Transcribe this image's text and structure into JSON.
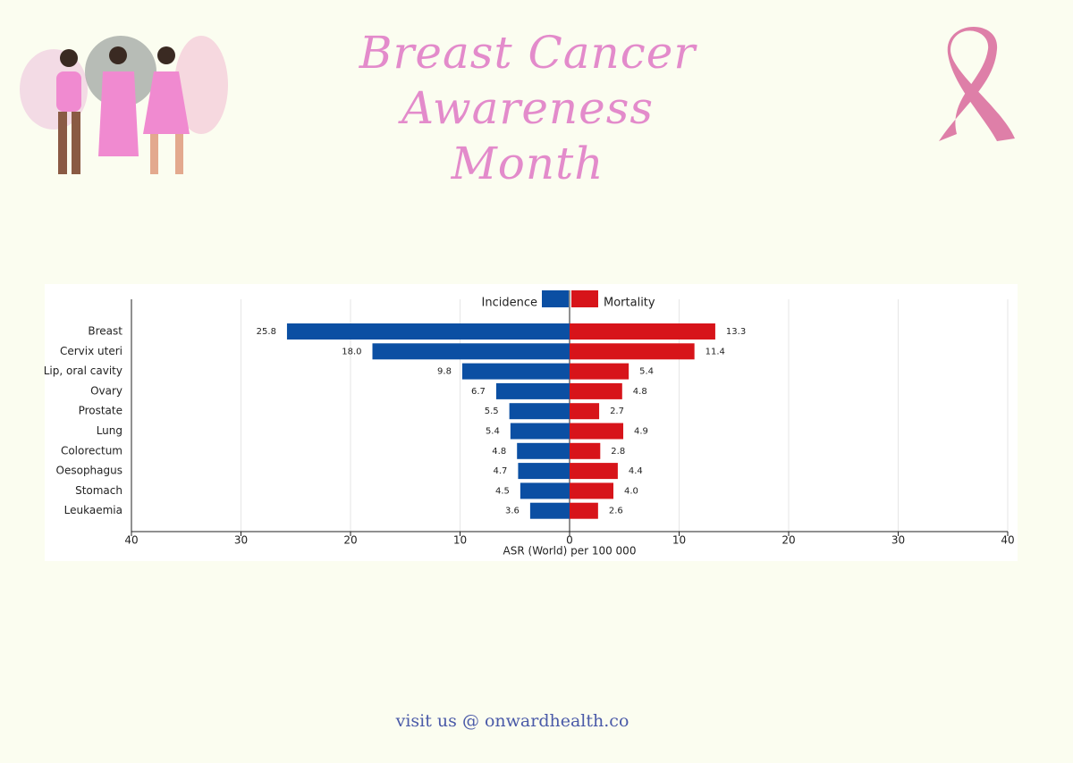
{
  "header": {
    "title": "Breast Cancer Awareness Month"
  },
  "chart_data": {
    "type": "butterfly-bar",
    "categories": [
      "Breast",
      "Cervix uteri",
      "Lip, oral cavity",
      "Ovary",
      "Prostate",
      "Lung",
      "Colorectum",
      "Oesophagus",
      "Stomach",
      "Leukaemia"
    ],
    "series": [
      {
        "name": "Incidence",
        "color": "#0b4fa3",
        "values": [
          25.8,
          18.0,
          9.8,
          6.7,
          5.5,
          5.4,
          4.8,
          4.7,
          4.5,
          3.6
        ],
        "value_labels": [
          "25.8",
          "18.0",
          "9.8",
          "6.7",
          "5.5",
          "5.4",
          "4.8",
          "4.7",
          "4.5",
          "3.6"
        ]
      },
      {
        "name": "Mortality",
        "color": "#d7141a",
        "values": [
          13.3,
          11.4,
          5.4,
          4.8,
          2.7,
          4.9,
          2.8,
          4.4,
          4.0,
          2.6
        ],
        "value_labels": [
          "13.3",
          "11.4",
          "5.4",
          "4.8",
          "2.7",
          "4.9",
          "2.8",
          "4.4",
          "4.0",
          "2.6"
        ]
      }
    ],
    "xlim": [
      -40,
      40
    ],
    "xticks": [
      {
        "value": -40,
        "label": "40"
      },
      {
        "value": -30,
        "label": "30"
      },
      {
        "value": -20,
        "label": "20"
      },
      {
        "value": -10,
        "label": "10"
      },
      0,
      10,
      20,
      30,
      40
    ],
    "xlabel": "ASR (World) per 100 000",
    "grid": true
  },
  "footer": {
    "text": "visit us @ onwardhealth.co"
  }
}
